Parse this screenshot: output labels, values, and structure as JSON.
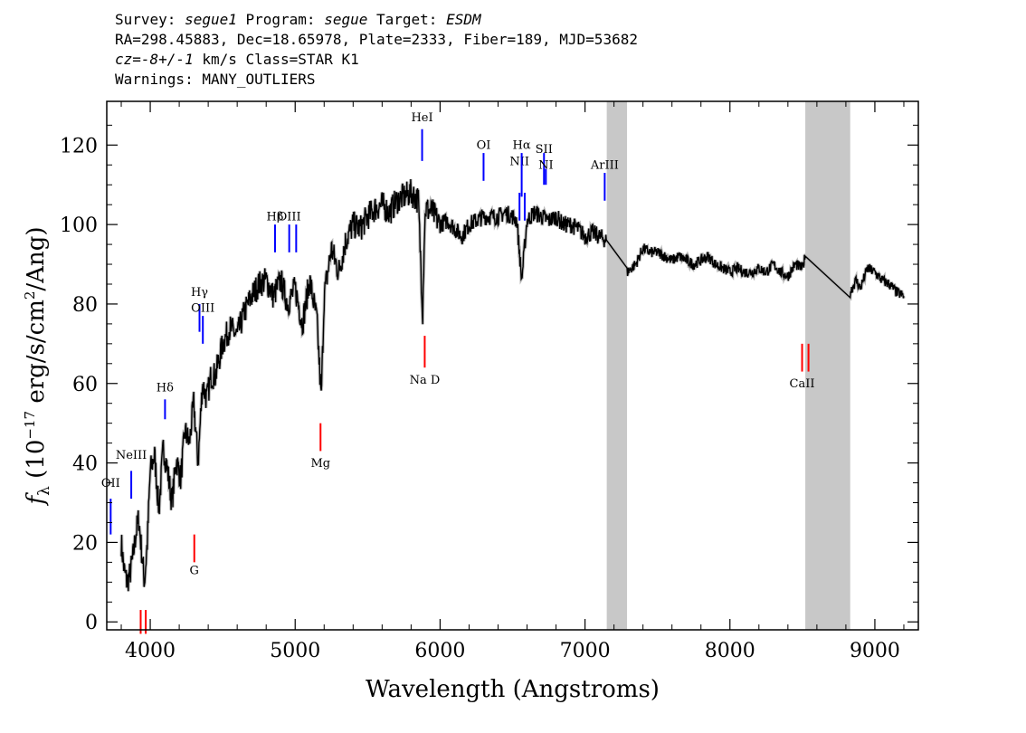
{
  "header": {
    "line1": {
      "survey_label": "Survey: ",
      "survey": "segue1",
      "program_label": " Program: ",
      "program": "segue",
      "target_label": " Target: ",
      "target": "ESDM"
    },
    "line2": "RA=298.45883, Dec=18.65978, Plate=2333, Fiber=189, MJD=53682",
    "line3": {
      "cz": "cz=-8+/-1",
      "rest": " km/s Class=STAR K1"
    },
    "line4": "Warnings: MANY_OUTLIERS"
  },
  "chart_data": {
    "type": "line",
    "xlabel": "Wavelength (Angstroms)",
    "ylabel": "f_λ (10^-17 erg/s/cm^2/Ang)",
    "ylabel_parts": {
      "f": "f",
      "lambda": "λ",
      "open": " (10",
      "exp1": "−17",
      "mid": " erg/s/cm",
      "exp2": "2",
      "close": "/Ang)"
    },
    "xlim": [
      3700,
      9300
    ],
    "ylim": [
      -2,
      131
    ],
    "x_ticks": [
      4000,
      5000,
      6000,
      7000,
      8000,
      9000
    ],
    "x_tick_labels": [
      "4000",
      "5000",
      "6000",
      "7000",
      "8000",
      "9000"
    ],
    "y_ticks": [
      0,
      20,
      40,
      60,
      80,
      100,
      120
    ],
    "y_tick_labels": [
      "0",
      "20",
      "40",
      "60",
      "80",
      "100",
      "120"
    ],
    "line_color": "#000000",
    "error_color": "#bbbbbb",
    "masked_color": "#c8c8c8",
    "masked_regions": [
      [
        7150,
        7290
      ],
      [
        8520,
        8830
      ]
    ],
    "spectrum": {
      "x": [
        3800,
        3820,
        3840,
        3860,
        3880,
        3900,
        3920,
        3940,
        3960,
        3980,
        4000,
        4030,
        4060,
        4090,
        4120,
        4150,
        4180,
        4210,
        4240,
        4270,
        4300,
        4330,
        4360,
        4390,
        4420,
        4450,
        4500,
        4550,
        4600,
        4650,
        4700,
        4750,
        4800,
        4850,
        4900,
        4950,
        5000,
        5050,
        5100,
        5150,
        5180,
        5200,
        5250,
        5300,
        5350,
        5400,
        5450,
        5500,
        5550,
        5600,
        5650,
        5700,
        5750,
        5800,
        5850,
        5880,
        5890,
        5900,
        5950,
        6000,
        6050,
        6100,
        6150,
        6200,
        6250,
        6300,
        6350,
        6400,
        6450,
        6500,
        6530,
        6563,
        6600,
        6650,
        6700,
        6750,
        6800,
        6850,
        6900,
        6950,
        7000,
        7050,
        7100,
        7150,
        7290,
        7350,
        7400,
        7450,
        7500,
        7550,
        7600,
        7650,
        7700,
        7750,
        7800,
        7850,
        7900,
        7950,
        8000,
        8050,
        8100,
        8150,
        8200,
        8250,
        8300,
        8350,
        8400,
        8450,
        8500,
        8520,
        8830,
        8870,
        8900,
        8950,
        9000,
        9050,
        9100,
        9150,
        9200
      ],
      "y": [
        20,
        13,
        10,
        12,
        16,
        22,
        26,
        18,
        10,
        20,
        38,
        42,
        28,
        44,
        38,
        30,
        41,
        36,
        48,
        45,
        55,
        40,
        60,
        56,
        62,
        62,
        70,
        74,
        72,
        78,
        82,
        85,
        86,
        82,
        86,
        80,
        84,
        75,
        86,
        76,
        56,
        82,
        94,
        88,
        96,
        100,
        99,
        102,
        104,
        105,
        103,
        106,
        107,
        108,
        106,
        78,
        96,
        104,
        103,
        100,
        101,
        99,
        97,
        100,
        101,
        102,
        102,
        102,
        103,
        102,
        101,
        86,
        101,
        103,
        102,
        101,
        102,
        100,
        100,
        99,
        97,
        98,
        97,
        96,
        88,
        90,
        94,
        93,
        93,
        92,
        91,
        92,
        91,
        90,
        91,
        92,
        90,
        89,
        88,
        89,
        88,
        88,
        89,
        88,
        90,
        88,
        87,
        90,
        89,
        92,
        83,
        86,
        84,
        89,
        88,
        86,
        85,
        83,
        82
      ]
    },
    "lines": [
      {
        "label": "OII",
        "x": 3727,
        "y_top": 31,
        "y_bot": 22,
        "color": "#0000ff",
        "label_y": 34
      },
      {
        "label": "NeIII",
        "x": 3869,
        "y_top": 38,
        "y_bot": 31,
        "color": "#0000ff",
        "label_y": 41
      },
      {
        "label": "Hδ",
        "x": 4102,
        "y_top": 56,
        "y_bot": 51,
        "color": "#0000ff",
        "label_y": 58
      },
      {
        "label": "Hγ",
        "x": 4340,
        "y_top": 80,
        "y_bot": 73,
        "color": "#0000ff",
        "label_y": 82
      },
      {
        "label": "OIII",
        "x": 4363,
        "y_top": 77,
        "y_bot": 70,
        "color": "#0000ff",
        "label_y": 78
      },
      {
        "label": "Hβ",
        "x": 4861,
        "y_top": 100,
        "y_bot": 93,
        "color": "#0000ff",
        "label_y": 101
      },
      {
        "label": "OIII",
        "x": 4959,
        "y_top": 100,
        "y_bot": 93,
        "color": "#0000ff",
        "label_y": 101
      },
      {
        "label": "",
        "x": 5007,
        "y_top": 100,
        "y_bot": 93,
        "color": "#0000ff",
        "label_y": 101
      },
      {
        "label": "HeI",
        "x": 5876,
        "y_top": 124,
        "y_bot": 116,
        "color": "#0000ff",
        "label_y": 126
      },
      {
        "label": "OI",
        "x": 6300,
        "y_top": 118,
        "y_bot": 111,
        "color": "#0000ff",
        "label_y": 119
      },
      {
        "label": "NII",
        "x": 6548,
        "y_top": 108,
        "y_bot": 101,
        "color": "#0000ff",
        "label_y": 115
      },
      {
        "label": "Hα",
        "x": 6563,
        "y_top": 118,
        "y_bot": 107,
        "color": "#0000ff",
        "label_y": 119
      },
      {
        "label": "",
        "x": 6584,
        "y_top": 108,
        "y_bot": 101,
        "color": "#0000ff",
        "label_y": 115
      },
      {
        "label": "SII",
        "x": 6717,
        "y_top": 118,
        "y_bot": 110,
        "color": "#0000ff",
        "label_y": 118
      },
      {
        "label": "NI",
        "x": 6730,
        "y_top": 114,
        "y_bot": 110,
        "color": "#0000ff",
        "label_y": 114
      },
      {
        "label": "ArIII",
        "x": 7136,
        "y_top": 113,
        "y_bot": 106,
        "color": "#0000ff",
        "label_y": 114
      },
      {
        "label": "G",
        "x": 4304,
        "y_top": 22,
        "y_bot": 15,
        "color": "#ff0000",
        "label_y": 12
      },
      {
        "label": "Mg",
        "x": 5175,
        "y_top": 50,
        "y_bot": 43,
        "color": "#ff0000",
        "label_y": 39
      },
      {
        "label": "Na D",
        "x": 5894,
        "y_top": 72,
        "y_bot": 64,
        "color": "#ff0000",
        "label_y": 60
      },
      {
        "label": "CaII",
        "x": 8498,
        "y_top": 70,
        "y_bot": 63,
        "color": "#ff0000",
        "label_y": 59
      },
      {
        "label": "",
        "x": 8542,
        "y_top": 70,
        "y_bot": 63,
        "color": "#ff0000",
        "label_y": 59
      },
      {
        "label": "",
        "x": 3934,
        "y_top": 3,
        "y_bot": -3,
        "color": "#ff0000",
        "label_y": -3
      },
      {
        "label": "",
        "x": 3969,
        "y_top": 3,
        "y_bot": -3,
        "color": "#ff0000",
        "label_y": -3
      }
    ]
  }
}
